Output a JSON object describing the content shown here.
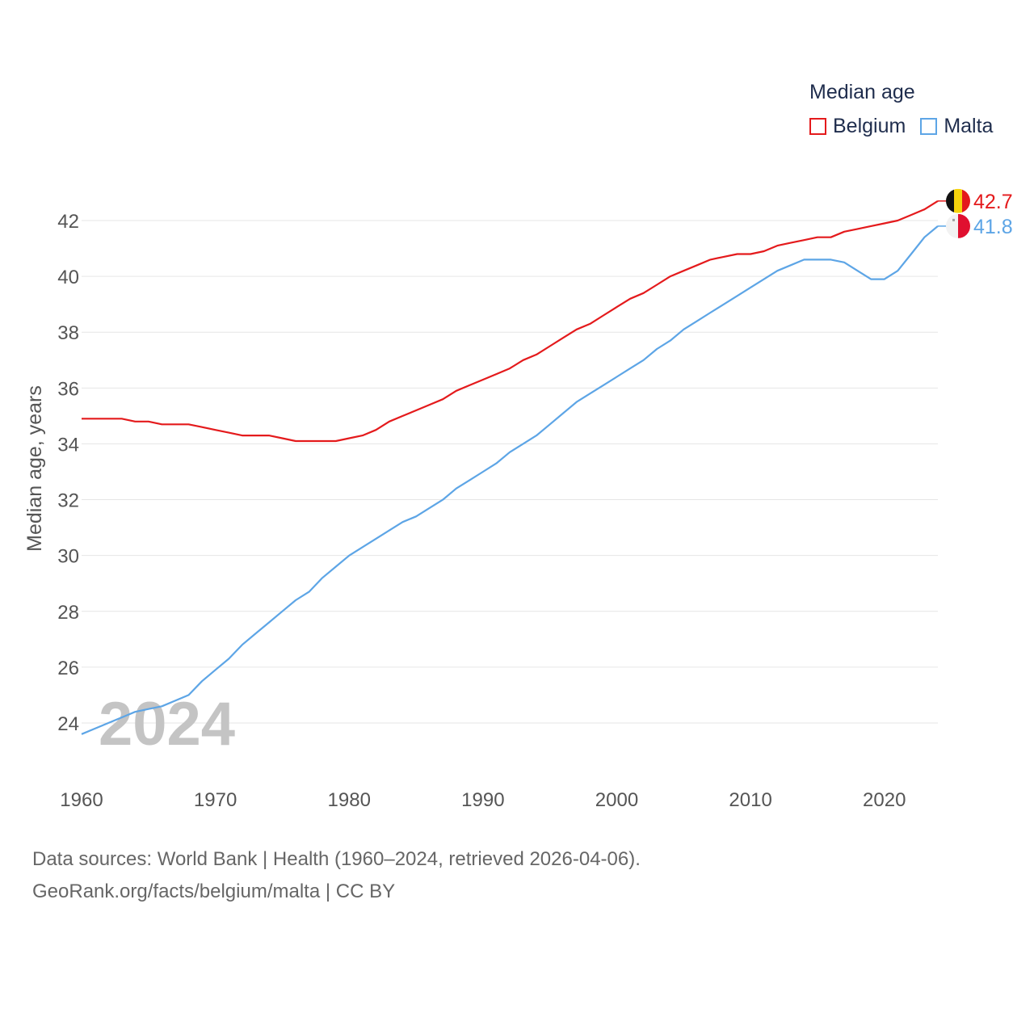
{
  "legend": {
    "title": "Median age",
    "items": [
      {
        "name": "Belgium",
        "color": "#e41a1c"
      },
      {
        "name": "Malta",
        "color": "#5da5e6"
      }
    ]
  },
  "footer": {
    "line1": "Data sources: World Bank | Health (1960–2024, retrieved 2026-04-06).",
    "line2": "GeoRank.org/facts/belgium/malta | CC BY"
  },
  "chart_data": {
    "type": "line",
    "title": "Median age",
    "ylabel": "Median age, years",
    "xlabel": "",
    "year_watermark": "2024",
    "xlim": [
      1960,
      2024
    ],
    "ylim": [
      23.2,
      43
    ],
    "x_ticks": [
      1960,
      1970,
      1980,
      1990,
      2000,
      2010,
      2020
    ],
    "y_ticks": [
      24,
      26,
      28,
      30,
      32,
      34,
      36,
      38,
      40,
      42
    ],
    "grid": true,
    "x": [
      1960,
      1961,
      1962,
      1963,
      1964,
      1965,
      1966,
      1967,
      1968,
      1969,
      1970,
      1971,
      1972,
      1973,
      1974,
      1975,
      1976,
      1977,
      1978,
      1979,
      1980,
      1981,
      1982,
      1983,
      1984,
      1985,
      1986,
      1987,
      1988,
      1989,
      1990,
      1991,
      1992,
      1993,
      1994,
      1995,
      1996,
      1997,
      1998,
      1999,
      2000,
      2001,
      2002,
      2003,
      2004,
      2005,
      2006,
      2007,
      2008,
      2009,
      2010,
      2011,
      2012,
      2013,
      2014,
      2015,
      2016,
      2017,
      2018,
      2019,
      2020,
      2021,
      2022,
      2023,
      2024
    ],
    "series": [
      {
        "name": "Belgium",
        "color": "#e41a1c",
        "end_label": "42.7",
        "values": [
          34.9,
          34.9,
          34.9,
          34.9,
          34.8,
          34.8,
          34.7,
          34.7,
          34.7,
          34.6,
          34.5,
          34.4,
          34.3,
          34.3,
          34.3,
          34.2,
          34.1,
          34.1,
          34.1,
          34.1,
          34.2,
          34.3,
          34.5,
          34.8,
          35.0,
          35.2,
          35.4,
          35.6,
          35.9,
          36.1,
          36.3,
          36.5,
          36.7,
          37.0,
          37.2,
          37.5,
          37.8,
          38.1,
          38.3,
          38.6,
          38.9,
          39.2,
          39.4,
          39.7,
          40.0,
          40.2,
          40.4,
          40.6,
          40.7,
          40.8,
          40.8,
          40.9,
          41.1,
          41.2,
          41.3,
          41.4,
          41.4,
          41.6,
          41.7,
          41.8,
          41.9,
          42.0,
          42.2,
          42.4,
          42.7
        ]
      },
      {
        "name": "Malta",
        "color": "#5da5e6",
        "end_label": "41.8",
        "values": [
          23.6,
          23.8,
          24.0,
          24.2,
          24.4,
          24.5,
          24.6,
          24.8,
          25.0,
          25.5,
          25.9,
          26.3,
          26.8,
          27.2,
          27.6,
          28.0,
          28.4,
          28.7,
          29.2,
          29.6,
          30.0,
          30.3,
          30.6,
          30.9,
          31.2,
          31.4,
          31.7,
          32.0,
          32.4,
          32.7,
          33.0,
          33.3,
          33.7,
          34.0,
          34.3,
          34.7,
          35.1,
          35.5,
          35.8,
          36.1,
          36.4,
          36.7,
          37.0,
          37.4,
          37.7,
          38.1,
          38.4,
          38.7,
          39.0,
          39.3,
          39.6,
          39.9,
          40.2,
          40.4,
          40.6,
          40.6,
          40.6,
          40.5,
          40.2,
          39.9,
          39.9,
          40.2,
          40.8,
          41.4,
          41.8
        ]
      }
    ]
  }
}
